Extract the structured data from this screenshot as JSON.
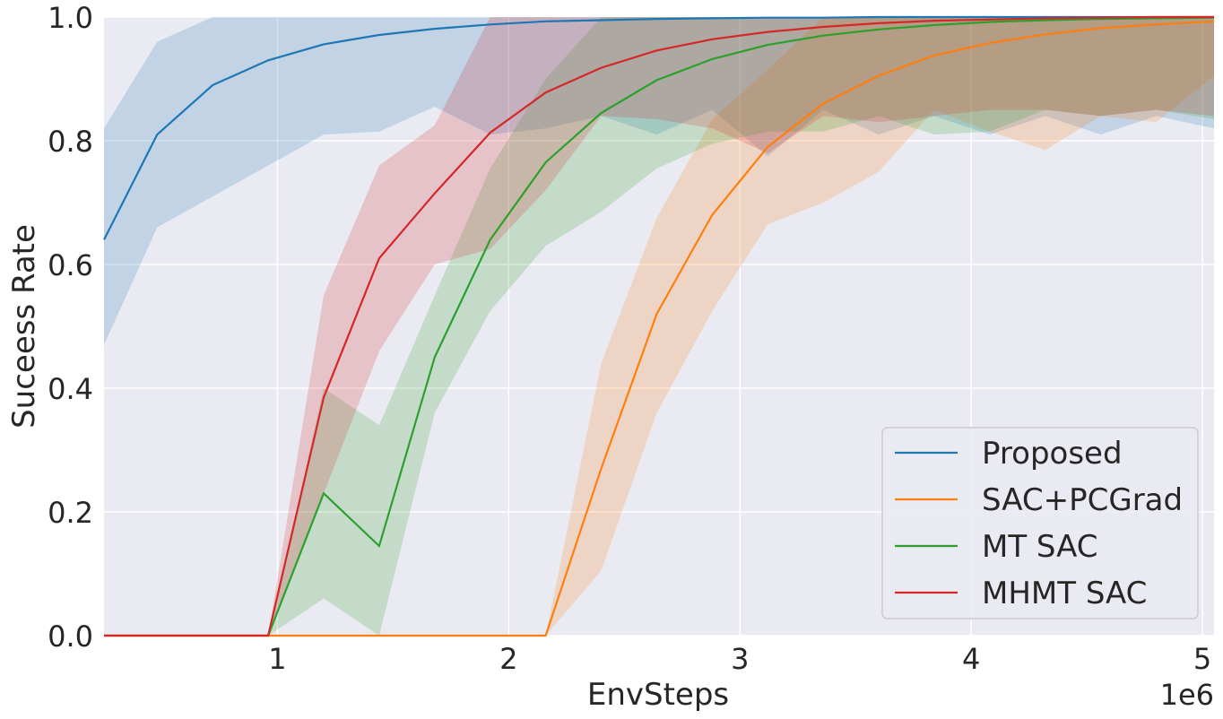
{
  "chart_data": {
    "type": "line",
    "title": "",
    "xlabel": "EnvSteps",
    "ylabel": "Suceess Rate",
    "x_offset_label": "1e6",
    "xlim": [
      0.25,
      5.05
    ],
    "ylim": [
      0.0,
      1.0
    ],
    "x_ticks": [
      1,
      2,
      3,
      4,
      5
    ],
    "x_tick_labels": [
      "1",
      "2",
      "3",
      "4",
      "5"
    ],
    "y_ticks": [
      0.0,
      0.2,
      0.4,
      0.6,
      0.8,
      1.0
    ],
    "y_tick_labels": [
      "0.0",
      "0.2",
      "0.4",
      "0.6",
      "0.8",
      "1.0"
    ],
    "grid": true,
    "legend_position": "bottom-right",
    "x": [
      0.25,
      0.48,
      0.72,
      0.96,
      1.2,
      1.44,
      1.68,
      1.92,
      2.16,
      2.4,
      2.64,
      2.88,
      3.12,
      3.36,
      3.6,
      3.84,
      4.08,
      4.32,
      4.56,
      4.8,
      5.05
    ],
    "series": [
      {
        "name": "Proposed",
        "color": "#1f77b4",
        "values": [
          0.64,
          0.81,
          0.89,
          0.93,
          0.956,
          0.971,
          0.981,
          0.988,
          0.993,
          0.995,
          0.997,
          0.998,
          0.999,
          0.999,
          1.0,
          1.0,
          1.0,
          1.0,
          1.0,
          1.0,
          1.0
        ],
        "lower": [
          0.47,
          0.66,
          0.71,
          0.76,
          0.81,
          0.815,
          0.855,
          0.81,
          0.82,
          0.84,
          0.81,
          0.85,
          0.775,
          0.85,
          0.81,
          0.84,
          0.81,
          0.84,
          0.81,
          0.84,
          0.82
        ],
        "upper": [
          0.82,
          0.96,
          1.0,
          1.0,
          1.0,
          1.0,
          1.0,
          1.0,
          1.0,
          1.0,
          1.0,
          1.0,
          1.0,
          1.0,
          1.0,
          1.0,
          1.0,
          1.0,
          1.0,
          1.0,
          1.0
        ]
      },
      {
        "name": "SAC+PCGrad",
        "color": "#ff7f0e",
        "values": [
          0.0,
          0.0,
          0.0,
          0.0,
          0.0,
          0.0,
          0.0,
          0.0,
          0.0,
          0.27,
          0.52,
          0.68,
          0.79,
          0.86,
          0.905,
          0.938,
          0.958,
          0.972,
          0.982,
          0.988,
          0.993
        ],
        "lower": [
          0.0,
          0.0,
          0.0,
          0.0,
          0.0,
          0.0,
          0.0,
          0.0,
          0.0,
          0.105,
          0.36,
          0.525,
          0.665,
          0.7,
          0.75,
          0.85,
          0.815,
          0.785,
          0.84,
          0.83,
          0.905
        ],
        "upper": [
          0.0,
          0.0,
          0.0,
          0.0,
          0.0,
          0.0,
          0.0,
          0.0,
          0.0,
          0.44,
          0.675,
          0.835,
          0.915,
          1.0,
          1.0,
          1.0,
          1.0,
          1.0,
          1.0,
          1.0,
          1.0
        ]
      },
      {
        "name": "MT SAC",
        "color": "#2ca02c",
        "values": [
          0.0,
          0.0,
          0.0,
          0.0,
          0.23,
          0.145,
          0.45,
          0.64,
          0.765,
          0.845,
          0.898,
          0.932,
          0.955,
          0.97,
          0.98,
          0.987,
          0.992,
          0.995,
          0.997,
          0.998,
          0.999
        ],
        "lower": [
          0.0,
          0.0,
          0.0,
          0.0,
          0.06,
          0.0,
          0.36,
          0.525,
          0.63,
          0.685,
          0.755,
          0.795,
          0.815,
          0.815,
          0.84,
          0.81,
          0.815,
          0.85,
          0.84,
          0.85,
          0.835
        ],
        "upper": [
          0.0,
          0.0,
          0.0,
          0.0,
          0.4,
          0.34,
          0.55,
          0.755,
          0.9,
          1.0,
          1.0,
          1.0,
          1.0,
          1.0,
          1.0,
          1.0,
          1.0,
          1.0,
          1.0,
          1.0,
          1.0
        ]
      },
      {
        "name": "MHMT SAC",
        "color": "#d62728",
        "values": [
          0.0,
          0.0,
          0.0,
          0.0,
          0.385,
          0.61,
          0.715,
          0.813,
          0.878,
          0.918,
          0.946,
          0.964,
          0.976,
          0.984,
          0.99,
          0.994,
          0.996,
          0.998,
          0.999,
          1.0,
          1.0
        ],
        "lower": [
          0.0,
          0.0,
          0.0,
          0.0,
          0.23,
          0.46,
          0.6,
          0.625,
          0.72,
          0.84,
          0.835,
          0.82,
          0.78,
          0.84,
          0.83,
          0.84,
          0.85,
          0.85,
          0.84,
          0.85,
          0.84
        ],
        "upper": [
          0.0,
          0.0,
          0.0,
          0.0,
          0.55,
          0.76,
          0.825,
          1.0,
          1.0,
          1.0,
          1.0,
          1.0,
          1.0,
          1.0,
          1.0,
          1.0,
          1.0,
          1.0,
          1.0,
          1.0,
          1.0
        ]
      }
    ]
  }
}
